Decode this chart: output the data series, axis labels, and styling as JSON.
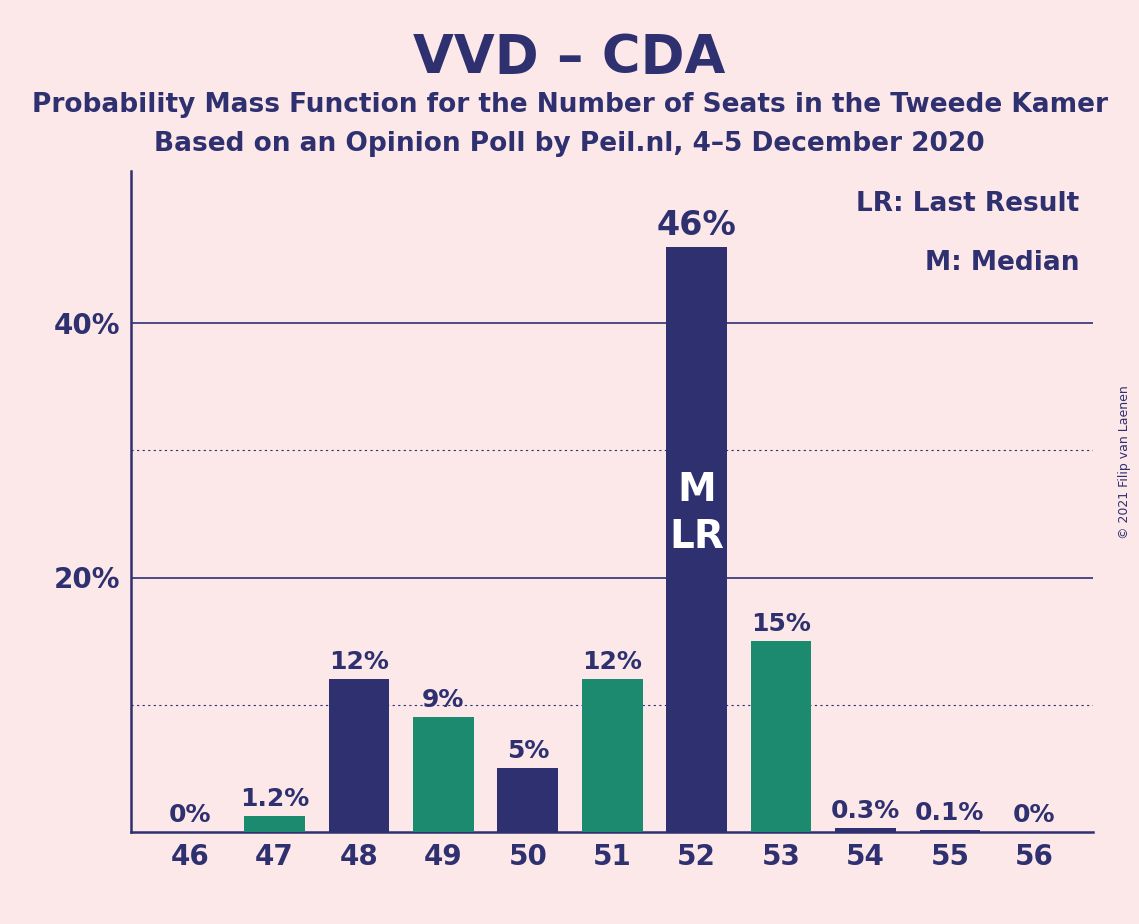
{
  "title": "VVD – CDA",
  "subtitle1": "Probability Mass Function for the Number of Seats in the Tweede Kamer",
  "subtitle2": "Based on an Opinion Poll by Peil.nl, 4–5 December 2020",
  "copyright": "© 2021 Filip van Laenen",
  "legend_line1": "LR: Last Result",
  "legend_line2": "M: Median",
  "seats": [
    46,
    47,
    48,
    49,
    50,
    51,
    52,
    53,
    54,
    55,
    56
  ],
  "values": [
    0.0,
    1.2,
    12.0,
    9.0,
    5.0,
    12.0,
    46.0,
    15.0,
    0.3,
    0.1,
    0.0
  ],
  "labels": [
    "0%",
    "1.2%",
    "12%",
    "9%",
    "5%",
    "12%",
    "46%",
    "15%",
    "0.3%",
    "0.1%",
    "0%"
  ],
  "bar_colors": [
    "#2e3070",
    "#1b8a6e",
    "#2e3070",
    "#1b8a6e",
    "#2e3070",
    "#1b8a6e",
    "#2e3070",
    "#1b8a6e",
    "#2e3070",
    "#2e3070",
    "#2e3070"
  ],
  "median_bar": 52,
  "background_color": "#fce8e8",
  "solid_lines": [
    20,
    40
  ],
  "dotted_lines": [
    10,
    30
  ],
  "ytick_positions": [
    20,
    40
  ],
  "ytick_labels": [
    "20%",
    "40%"
  ],
  "ylim": [
    0,
    52
  ],
  "xlim_left": 45.3,
  "xlim_right": 56.7,
  "bar_width": 0.72,
  "title_fontsize": 38,
  "subtitle_fontsize": 19,
  "tick_fontsize": 20,
  "legend_fontsize": 19,
  "bar_label_fontsize": 18,
  "bar_label_fontsize_46pct": 24,
  "inside_label_fontsize": 28,
  "copyright_fontsize": 9
}
